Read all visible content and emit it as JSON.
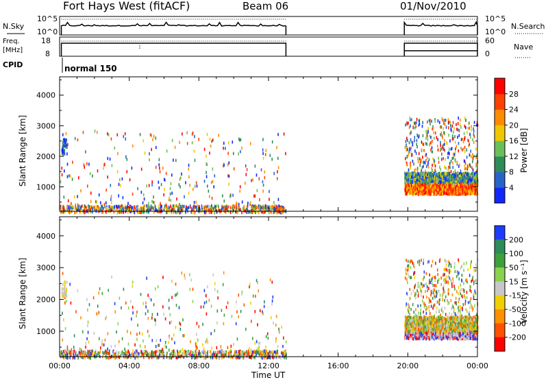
{
  "header": {
    "title": "Fort Hays West (fitACF)",
    "beam": "Beam 06",
    "date": "01/Nov/2010"
  },
  "panels": {
    "nsky": {
      "label": "N.Sky",
      "ticks": [
        "10^5",
        "10^0"
      ],
      "right_label": "N.Search",
      "right_ticks": [
        "10^5",
        "10^0"
      ]
    },
    "freq": {
      "label_top": "Freq.",
      "label_bottom": "[MHz]",
      "ticks": [
        "18",
        "8"
      ],
      "right_label": "Nave",
      "right_ticks": [
        "60",
        "0"
      ]
    },
    "cpid": {
      "label": "CPID",
      "mode": "normal 150"
    }
  },
  "chart_data": [
    {
      "type": "heatmap",
      "name": "power",
      "ylabel": "Slant Range [km]",
      "xlabel": "",
      "yticks": [
        1000,
        2000,
        3000,
        4000
      ],
      "ylim": [
        200,
        4600
      ],
      "xlim_hours": [
        0,
        24
      ],
      "colorbar": {
        "label": "Power [dB]",
        "ticks": [
          "4",
          "8",
          "12",
          "16",
          "20",
          "24",
          "28"
        ],
        "range": [
          0,
          32
        ],
        "colors": [
          "#1028ff",
          "#2864c8",
          "#2e8c5a",
          "#6bbf59",
          "#f0c800",
          "#ff8c00",
          "#ff4000",
          "#ff0000"
        ]
      },
      "data_gaps_hours": [
        [
          13.0,
          19.8
        ]
      ]
    },
    {
      "type": "heatmap",
      "name": "velocity",
      "ylabel": "Slant Range [km]",
      "xlabel": "Time UT",
      "yticks": [
        1000,
        2000,
        3000,
        4000
      ],
      "ylim": [
        200,
        4600
      ],
      "xlim_hours": [
        0,
        24
      ],
      "xticks": [
        "00:00",
        "04:00",
        "08:00",
        "12:00",
        "16:00",
        "20:00",
        "00:00"
      ],
      "colorbar": {
        "label": "Velocity [m s⁻¹]",
        "ticks": [
          "200",
          "100",
          "50",
          "15",
          "-15",
          "-50",
          "-100",
          "-200"
        ],
        "colors": [
          "#1e3cff",
          "#2e8c5a",
          "#3ca03c",
          "#8cd050",
          "#c8c8c8",
          "#f0d000",
          "#ff9000",
          "#ff5000",
          "#ff0000"
        ]
      },
      "data_gaps_hours": [
        [
          13.0,
          19.8
        ]
      ]
    }
  ],
  "colors": {
    "axis": "#000000",
    "gap": "#ffffff"
  }
}
